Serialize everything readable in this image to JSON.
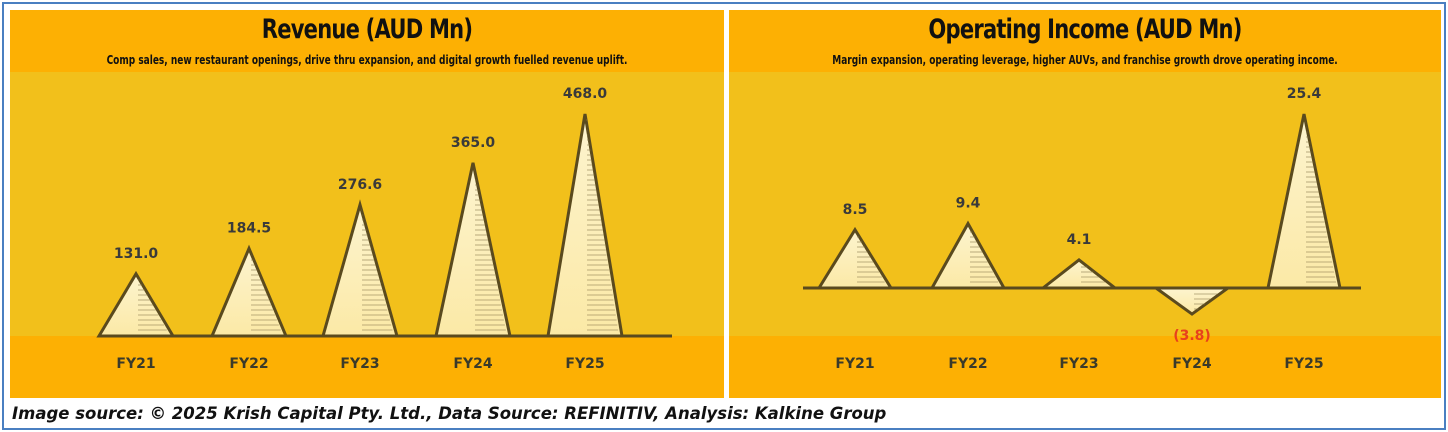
{
  "colors": {
    "panel_bg": "#f2c01b",
    "band_bg": "#fdb003",
    "peak_fill": "#fbe9a6",
    "outline": "#5a4a1e",
    "label_text": "#3a3a3a",
    "negative_text": "#e8401c"
  },
  "source_note": "Image source: © 2025 Krish Capital Pty. Ltd., Data Source: REFINITIV, Analysis: Kalkine Group",
  "chart_data": [
    {
      "type": "bar",
      "title": "Revenue (AUD Mn)",
      "subtitle": "Comp sales, new restaurant openings, drive thru expansion, and digital growth fuelled revenue uplift.",
      "categories": [
        "FY21",
        "FY22",
        "FY23",
        "FY24",
        "FY25"
      ],
      "values": [
        131.0,
        184.5,
        276.6,
        365.0,
        468.0
      ],
      "value_labels": [
        "131.0",
        "184.5",
        "276.6",
        "365.0",
        "468.0"
      ],
      "ylim": [
        0,
        468.0
      ],
      "grid": false,
      "legend": "none"
    },
    {
      "type": "bar",
      "title": "Operating Income (AUD Mn)",
      "subtitle": "Margin expansion, operating leverage, higher AUVs, and franchise growth drove operating income.",
      "categories": [
        "FY21",
        "FY22",
        "FY23",
        "FY24",
        "FY25"
      ],
      "values": [
        8.5,
        9.4,
        4.1,
        -3.8,
        25.4
      ],
      "value_labels": [
        "8.5",
        "9.4",
        "4.1",
        "(3.8)",
        "25.4"
      ],
      "ylim": [
        -3.8,
        25.4
      ],
      "grid": false,
      "legend": "none"
    }
  ]
}
